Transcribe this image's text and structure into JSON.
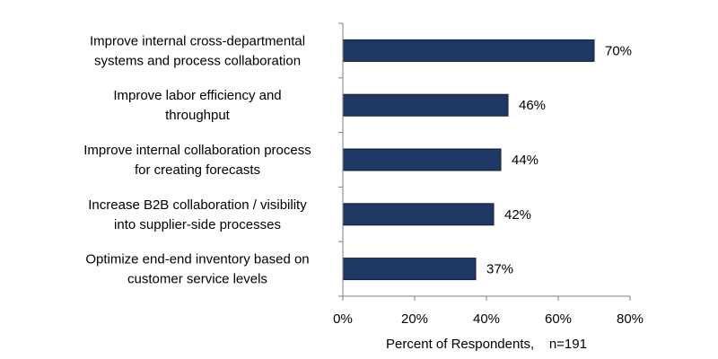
{
  "chart_data": {
    "type": "bar",
    "orientation": "horizontal",
    "categories": [
      [
        "Improve internal cross-departmental",
        "systems and process collaboration"
      ],
      [
        "Improve labor efficiency and",
        "throughput"
      ],
      [
        "Improve internal collaboration process",
        "for creating forecasts"
      ],
      [
        "Increase B2B collaboration / visibility",
        "into supplier-side processes"
      ],
      [
        "Optimize end-end inventory based on",
        "customer service levels"
      ]
    ],
    "values": [
      70,
      46,
      44,
      42,
      37
    ],
    "value_labels": [
      "70%",
      "46%",
      "44%",
      "42%",
      "37%"
    ],
    "xlim": [
      0,
      80
    ],
    "x_ticks": [
      0,
      20,
      40,
      60,
      80
    ],
    "x_tick_labels": [
      "0%",
      "20%",
      "40%",
      "60%",
      "80%"
    ],
    "xlabel": "Percent of Respondents,    n=191",
    "grid": false,
    "legend": "none",
    "bar_color": "#1f3864"
  }
}
